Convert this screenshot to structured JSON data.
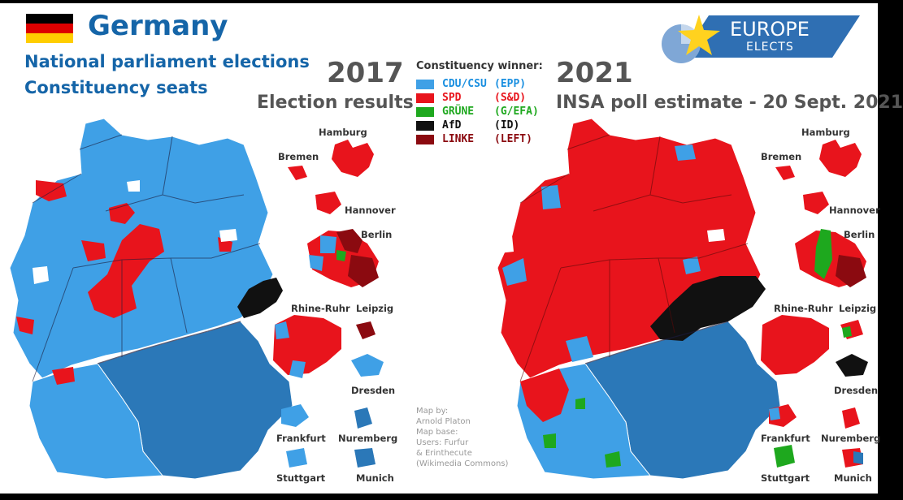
{
  "header": {
    "country": "Germany",
    "subtitle_line1": "National parliament elections",
    "subtitle_line2": "Constituency seats"
  },
  "branding": {
    "line1": "EUROPE",
    "line2": "ELECTS"
  },
  "left_panel": {
    "year": "2017",
    "subtitle": "Election results"
  },
  "right_panel": {
    "year": "2021",
    "subtitle": "INSA poll estimate - 20 Sept. 2021"
  },
  "legend": {
    "title": "Constituency winner:",
    "items": [
      {
        "name": "CDU/CSU",
        "group": "(EPP)",
        "color": "#3fa0e6",
        "text_color": "#1a8fe0"
      },
      {
        "name": "SPD",
        "group": "(S&D)",
        "color": "#e8141c",
        "text_color": "#e8141c"
      },
      {
        "name": "GRÜNE",
        "group": "(G/EFA)",
        "color": "#1ea81e",
        "text_color": "#1ea81e"
      },
      {
        "name": "AfD",
        "group": "(ID)",
        "color": "#111111",
        "text_color": "#111111"
      },
      {
        "name": "LINKE",
        "group": "(LEFT)",
        "color": "#8b0a10",
        "text_color": "#8b0a10"
      }
    ]
  },
  "cities": {
    "hamburg": "Hamburg",
    "bremen": "Bremen",
    "hannover": "Hannover",
    "berlin": "Berlin",
    "rhine_ruhr": "Rhine-Ruhr",
    "leipzig": "Leipzig",
    "dresden": "Dresden",
    "frankfurt": "Frankfurt",
    "nuremberg": "Nuremberg",
    "stuttgart": "Stuttgart",
    "munich": "Munich"
  },
  "credit": "Map by:\nArnold Platon\nMap base:\nUsers: Furfur\n& Erinthecute\n(Wikimedia Commons)",
  "colors": {
    "cdu": "#3fa0e6",
    "csu": "#2b78b8",
    "spd": "#e8141c",
    "gruene": "#1ea81e",
    "afd": "#111111",
    "linke": "#8b0a10",
    "title": "#1565a8",
    "flag_black": "#000000",
    "flag_red": "#dd0000",
    "flag_gold": "#ffce00"
  }
}
